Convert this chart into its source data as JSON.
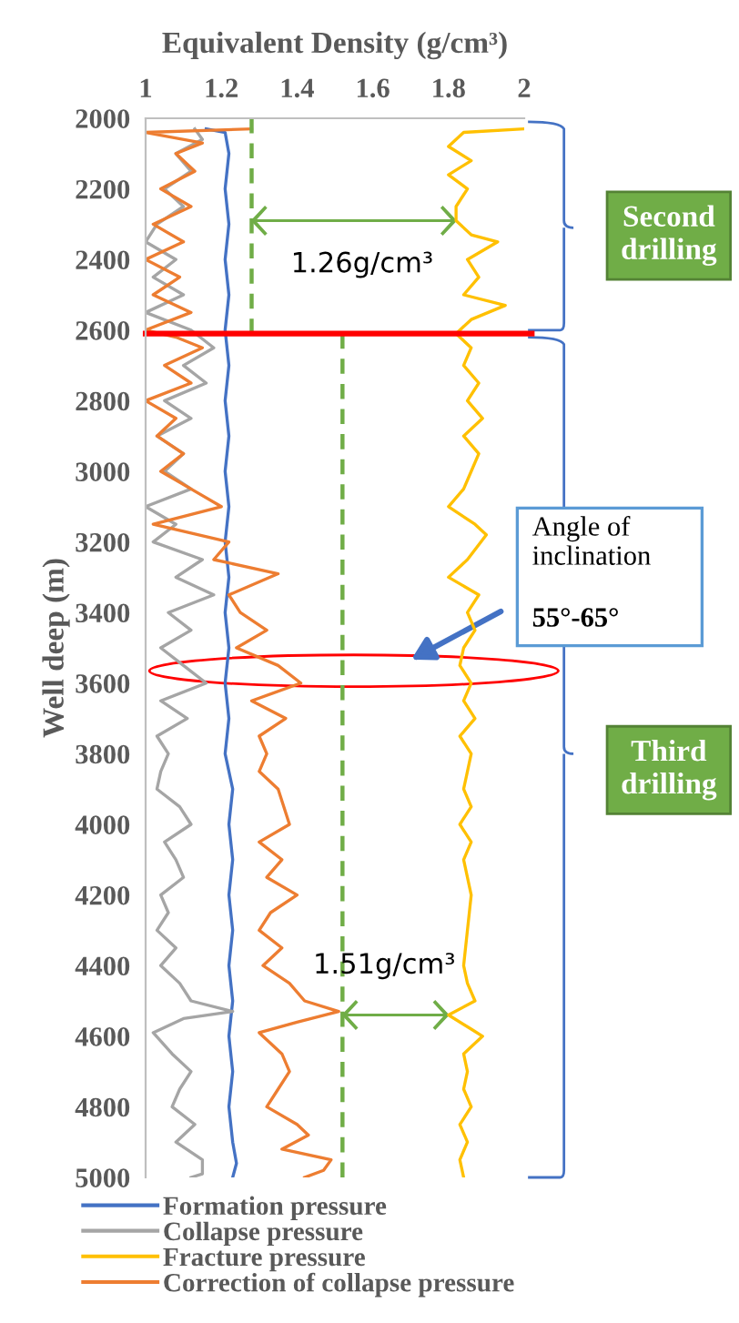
{
  "chart_data": {
    "type": "line",
    "xlabel": "Equivalent Density (g/cm³)",
    "ylabel": "Well deep (m)",
    "xlim": [
      1,
      2
    ],
    "xticks": [
      1,
      1.2,
      1.4,
      1.6,
      1.8,
      2
    ],
    "ylim": [
      5000,
      2000
    ],
    "yticks": [
      2000,
      2200,
      2400,
      2600,
      2800,
      3000,
      3200,
      3400,
      3600,
      3800,
      4000,
      4200,
      4400,
      4600,
      4800,
      5000
    ],
    "grid": false,
    "legend": "bottom",
    "line_style": "solid",
    "marker": "none",
    "series": [
      {
        "name": "Formation pressure",
        "color": "#4472c4",
        "x": [
          1.16,
          1.21,
          1.22,
          1.21,
          1.22,
          1.21,
          1.22,
          1.21,
          1.22,
          1.21,
          1.22,
          1.21,
          1.22,
          1.21,
          1.22,
          1.21,
          1.22,
          1.21,
          1.22,
          1.21,
          1.23,
          1.22,
          1.23,
          1.22,
          1.23,
          1.22,
          1.23,
          1.22,
          1.23,
          1.22,
          1.23,
          1.24,
          1.23
        ],
        "values": [
          2030,
          2040,
          2100,
          2200,
          2300,
          2400,
          2500,
          2600,
          2700,
          2800,
          2900,
          3000,
          3100,
          3200,
          3300,
          3400,
          3500,
          3600,
          3700,
          3800,
          3900,
          4000,
          4100,
          4200,
          4300,
          4400,
          4500,
          4600,
          4700,
          4800,
          4900,
          4960,
          5000
        ]
      },
      {
        "name": "Collapse pressure",
        "color": "#a5a5a5",
        "x": [
          1.13,
          1.15,
          1.08,
          1.12,
          1.05,
          1.1,
          1.03,
          1.0,
          1.08,
          1.02,
          1.1,
          1.0,
          1.12,
          1.18,
          1.1,
          1.16,
          1.05,
          1.12,
          1.03,
          1.1,
          1.05,
          1.12,
          1.0,
          1.08,
          1.02,
          1.15,
          1.08,
          1.18,
          1.06,
          1.12,
          1.04,
          1.1,
          1.16,
          1.04,
          1.11,
          1.03,
          1.06,
          1.04,
          1.03,
          1.09,
          1.12,
          1.05,
          1.08,
          1.1,
          1.04,
          1.06,
          1.03,
          1.08,
          1.04,
          1.09,
          1.12,
          1.23,
          1.1,
          1.02,
          1.07,
          1.12,
          1.09,
          1.07,
          1.13,
          1.08,
          1.15,
          1.15,
          1.12
        ],
        "values": [
          2030,
          2060,
          2100,
          2150,
          2200,
          2250,
          2300,
          2350,
          2400,
          2450,
          2500,
          2550,
          2600,
          2650,
          2700,
          2750,
          2800,
          2850,
          2900,
          2950,
          3000,
          3050,
          3100,
          3150,
          3200,
          3250,
          3300,
          3350,
          3400,
          3450,
          3500,
          3550,
          3600,
          3650,
          3700,
          3750,
          3800,
          3850,
          3900,
          3950,
          4000,
          4050,
          4100,
          4150,
          4200,
          4250,
          4300,
          4350,
          4400,
          4450,
          4500,
          4530,
          4550,
          4590,
          4650,
          4700,
          4750,
          4800,
          4850,
          4900,
          4950,
          4990,
          5000
        ]
      },
      {
        "name": "Fracture pressure",
        "color": "#ffc000",
        "x": [
          2.0,
          1.84,
          1.8,
          1.86,
          1.8,
          1.85,
          1.82,
          1.82,
          1.86,
          1.93,
          1.85,
          1.88,
          1.84,
          1.95,
          1.86,
          1.82,
          1.86,
          1.84,
          1.88,
          1.85,
          1.89,
          1.84,
          1.88,
          1.86,
          1.84,
          1.8,
          1.87,
          1.9,
          1.85,
          1.8,
          1.88,
          1.85,
          1.87,
          1.84,
          1.83,
          1.86,
          1.84,
          1.87,
          1.83,
          1.86,
          1.85,
          1.84,
          1.86,
          1.83,
          1.86,
          1.84,
          1.86,
          1.85,
          1.84,
          1.85,
          1.87,
          1.8,
          1.86,
          1.89,
          1.84,
          1.85,
          1.84,
          1.86,
          1.83,
          1.85,
          1.83,
          1.84
        ],
        "values": [
          2030,
          2040,
          2080,
          2120,
          2160,
          2200,
          2250,
          2290,
          2330,
          2350,
          2400,
          2450,
          2500,
          2530,
          2570,
          2610,
          2650,
          2700,
          2750,
          2800,
          2850,
          2900,
          2950,
          3000,
          3050,
          3100,
          3150,
          3180,
          3250,
          3300,
          3350,
          3400,
          3450,
          3500,
          3550,
          3600,
          3650,
          3700,
          3750,
          3800,
          3850,
          3900,
          3950,
          4000,
          4050,
          4100,
          4200,
          4300,
          4400,
          4450,
          4500,
          4540,
          4580,
          4600,
          4650,
          4700,
          4750,
          4800,
          4850,
          4900,
          4950,
          5000
        ]
      },
      {
        "name": "Correction of collapse pressure",
        "color": "#ed7d31",
        "x": [
          1.28,
          1.0,
          1.15,
          1.08,
          1.13,
          1.04,
          1.12,
          1.02,
          1.1,
          1.0,
          1.09,
          1.02,
          1.12,
          1.0,
          1.08,
          1.15,
          1.05,
          1.12,
          1.0,
          1.08,
          1.03,
          1.1,
          1.04,
          1.12,
          1.2,
          1.02,
          1.22,
          1.18,
          1.35,
          1.22,
          1.25,
          1.32,
          1.24,
          1.35,
          1.41,
          1.28,
          1.37,
          1.3,
          1.32,
          1.3,
          1.35,
          1.38,
          1.3,
          1.36,
          1.32,
          1.4,
          1.33,
          1.3,
          1.36,
          1.31,
          1.38,
          1.42,
          1.51,
          1.4,
          1.3,
          1.36,
          1.38,
          1.35,
          1.32,
          1.4,
          1.43,
          1.36,
          1.49,
          1.47,
          1.42
        ],
        "values": [
          2030,
          2040,
          2070,
          2100,
          2150,
          2200,
          2250,
          2300,
          2350,
          2400,
          2450,
          2500,
          2550,
          2600,
          2620,
          2650,
          2700,
          2750,
          2800,
          2850,
          2900,
          2950,
          3000,
          3050,
          3100,
          3150,
          3200,
          3250,
          3290,
          3350,
          3400,
          3450,
          3500,
          3550,
          3600,
          3650,
          3700,
          3750,
          3800,
          3850,
          3900,
          4000,
          4050,
          4100,
          4150,
          4200,
          4250,
          4300,
          4350,
          4400,
          4450,
          4500,
          4530,
          4560,
          4590,
          4650,
          4700,
          4750,
          4800,
          4850,
          4880,
          4920,
          4950,
          4980,
          5000
        ]
      },
      {
        "color": "#70ad47",
        "line_style": "dashed",
        "x": [
          1.28,
          1.28
        ],
        "values": [
          2000,
          2610
        ]
      },
      {
        "color": "#70ad47",
        "line_style": "dashed",
        "x": [
          1.52,
          1.52
        ],
        "values": [
          2610,
          5000
        ]
      }
    ],
    "ref_lines": [
      {
        "axis": "y",
        "value": 2610,
        "color": "#ff0000",
        "line_style": "solid"
      }
    ],
    "annotations": [
      "1.26g/cm³",
      "1.51g/cm³",
      "Angle of\ninclination\n55°-65°",
      "Second\ndrilling",
      "Third\ndrilling"
    ]
  }
}
